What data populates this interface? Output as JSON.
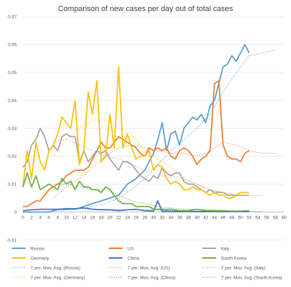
{
  "chart_data": {
    "type": "line",
    "title": "Comparison of new cases per day out of total cases",
    "xlabel": "",
    "ylabel": "",
    "xlim": [
      0,
      60
    ],
    "ylim": [
      -0.01,
      0.07
    ],
    "x_ticks": [
      "0",
      "2",
      "4",
      "6",
      "8",
      "10",
      "12",
      "14",
      "16",
      "18",
      "20",
      "22",
      "24",
      "26",
      "28",
      "30",
      "32",
      "34",
      "36",
      "38",
      "40",
      "42",
      "44",
      "46",
      "48",
      "50",
      "52",
      "54",
      "56",
      "58",
      "60"
    ],
    "y_ticks": [
      "-0,01",
      "0",
      "0,01",
      "0,02",
      "0,03",
      "0,04",
      "0,05",
      "0,06",
      "0,07"
    ],
    "grid": "horizontal",
    "legend_position": "bottom",
    "series": [
      {
        "name": "Russia",
        "color": "#5b9bd5",
        "dashed": false,
        "x": [
          0,
          2,
          4,
          6,
          8,
          10,
          12,
          14,
          16,
          18,
          20,
          22,
          24,
          26,
          28,
          29,
          30,
          31,
          32,
          33,
          34,
          35,
          36,
          37,
          38,
          39,
          40,
          41,
          42,
          43,
          44,
          45,
          46,
          47,
          48,
          49,
          50,
          51,
          52
        ],
        "y": [
          0,
          0,
          0,
          0,
          0.001,
          0.001,
          0.001,
          0.002,
          0.003,
          0.004,
          0.005,
          0.006,
          0.01,
          0.012,
          0.015,
          0.018,
          0.021,
          0.026,
          0.032,
          0.022,
          0.028,
          0.029,
          0.024,
          0.03,
          0.032,
          0.034,
          0.033,
          0.035,
          0.032,
          0.038,
          0.04,
          0.046,
          0.052,
          0.053,
          0.056,
          0.054,
          0.057,
          0.06,
          0.057
        ]
      },
      {
        "name": "US",
        "color": "#ed7d31",
        "dashed": false,
        "x": [
          0,
          1,
          2,
          3,
          4,
          5,
          6,
          7,
          8,
          9,
          10,
          11,
          12,
          13,
          14,
          15,
          16,
          17,
          18,
          19,
          20,
          21,
          22,
          23,
          24,
          25,
          26,
          27,
          28,
          29,
          30,
          31,
          32,
          33,
          34,
          35,
          36,
          37,
          38,
          39,
          40,
          41,
          42,
          43,
          44,
          45,
          46,
          47,
          48,
          49,
          50,
          51,
          52
        ],
        "y": [
          0.002,
          0.002,
          0.003,
          0.004,
          0.004,
          0.006,
          0.008,
          0.009,
          0.01,
          0.011,
          0.013,
          0.014,
          0.015,
          0.015,
          0.015,
          0.016,
          0.019,
          0.022,
          0.025,
          0.023,
          0.023,
          0.025,
          0.027,
          0.026,
          0.025,
          0.024,
          0.023,
          0.021,
          0.02,
          0.023,
          0.022,
          0.023,
          0.022,
          0.023,
          0.02,
          0.019,
          0.022,
          0.023,
          0.022,
          0.02,
          0.017,
          0.019,
          0.02,
          0.022,
          0.046,
          0.047,
          0.024,
          0.02,
          0.019,
          0.019,
          0.018,
          0.021,
          0.022
        ]
      },
      {
        "name": "Italy",
        "color": "#a5a5a5",
        "dashed": false,
        "x": [
          0,
          1,
          2,
          3,
          4,
          5,
          6,
          7,
          8,
          9,
          10,
          11,
          12,
          13,
          14,
          15,
          16,
          17,
          18,
          19,
          20,
          21,
          22,
          23,
          24,
          25,
          26,
          27,
          28,
          29,
          30,
          31,
          32,
          33,
          34,
          35,
          36,
          37,
          38,
          39,
          40,
          41,
          42,
          43,
          44,
          45,
          46,
          47,
          48,
          49,
          50,
          51,
          52
        ],
        "y": [
          0.016,
          0.018,
          0.024,
          0.026,
          0.03,
          0.027,
          0.022,
          0.024,
          0.022,
          0.027,
          0.028,
          0.027,
          0.027,
          0.018,
          0.022,
          0.018,
          0.02,
          0.022,
          0.021,
          0.022,
          0.019,
          0.017,
          0.015,
          0.018,
          0.018,
          0.017,
          0.015,
          0.013,
          0.012,
          0.011,
          0.013,
          0.012,
          0.016,
          0.014,
          0.013,
          0.014,
          0.014,
          0.011,
          0.01,
          0.01,
          0.009,
          0.008,
          0.007,
          0.008,
          0.007,
          0.007,
          0.007,
          0.006,
          0.006,
          0.006,
          0.006,
          0.006,
          0.006
        ]
      },
      {
        "name": "Germany",
        "color": "#ffc000",
        "dashed": false,
        "x": [
          0,
          1,
          2,
          3,
          4,
          5,
          6,
          7,
          8,
          9,
          10,
          11,
          12,
          13,
          14,
          15,
          16,
          17,
          18,
          19,
          20,
          21,
          22,
          23,
          24,
          25,
          26,
          27,
          28,
          29,
          30,
          31,
          32,
          33,
          34,
          35,
          36,
          37,
          38,
          39,
          40,
          41,
          42,
          43,
          44,
          45,
          46,
          47,
          48,
          49,
          50,
          51,
          52
        ],
        "y": [
          0.009,
          0.022,
          0.012,
          0.025,
          0.018,
          0.015,
          0.022,
          0.024,
          0.028,
          0.034,
          0.032,
          0.03,
          0.04,
          0.017,
          0.022,
          0.043,
          0.035,
          0.047,
          0.018,
          0.02,
          0.035,
          0.023,
          0.052,
          0.023,
          0.028,
          0.023,
          0.019,
          0.02,
          0.02,
          0.022,
          0.015,
          0.017,
          0.016,
          0.012,
          0.01,
          0.011,
          0.01,
          0.008,
          0.008,
          0.009,
          0.008,
          0.008,
          0.007,
          0.006,
          0.007,
          0.006,
          0.006,
          0.005,
          0.005,
          0.006,
          0.007,
          0.007,
          0.007
        ]
      },
      {
        "name": "China",
        "color": "#4472c4",
        "dashed": false,
        "x": [
          0,
          2,
          4,
          6,
          8,
          10,
          12,
          14,
          16,
          18,
          20,
          22,
          24,
          26,
          28,
          30,
          31,
          32,
          33,
          34,
          36,
          38,
          40,
          42,
          44,
          46,
          48,
          50,
          52
        ],
        "y": [
          0.0005,
          0.0008,
          0.001,
          0.001,
          0.001,
          0.0012,
          0.0012,
          0.0015,
          0.001,
          0.0008,
          0.0008,
          0.0005,
          0.0008,
          0.001,
          0.0005,
          0.0003,
          0.004,
          0.0002,
          0.0003,
          0.0002,
          0.0002,
          0.0002,
          0.0002,
          0.0002,
          0.0002,
          0.0002,
          0.0002,
          0.0002,
          0.0002
        ]
      },
      {
        "name": "South Korea",
        "color": "#70ad47",
        "dashed": false,
        "x": [
          0,
          1,
          2,
          3,
          4,
          5,
          6,
          7,
          8,
          9,
          10,
          11,
          12,
          13,
          14,
          15,
          16,
          17,
          18,
          19,
          20,
          21,
          22,
          23,
          24,
          25,
          26,
          27,
          28,
          29,
          30,
          31,
          32,
          34,
          36,
          38,
          40,
          42,
          44,
          46,
          48,
          50,
          52
        ],
        "y": [
          0.009,
          0.014,
          0.009,
          0.013,
          0.008,
          0.009,
          0.01,
          0.009,
          0.008,
          0.012,
          0.01,
          0.011,
          0.008,
          0.011,
          0.009,
          0.009,
          0.008,
          0.008,
          0.007,
          0.009,
          0.008,
          0.006,
          0.004,
          0.003,
          0.003,
          0.003,
          0.002,
          0.002,
          0.002,
          0.002,
          0.001,
          0.001,
          0.001,
          0.001,
          0.0005,
          0.0005,
          0.001,
          0.0005,
          0.0005,
          0.0005,
          0.0003,
          0.0003,
          0.0005
        ]
      },
      {
        "name": "7 per. Mov. Avg. (Russia)",
        "color": "#5b9bd5",
        "dashed": true,
        "x": [
          7,
          10,
          13,
          16,
          19,
          22,
          25,
          28,
          31,
          34,
          37,
          40,
          43,
          46,
          49,
          52,
          55,
          58
        ],
        "y": [
          0.0003,
          0.0008,
          0.0012,
          0.002,
          0.003,
          0.005,
          0.008,
          0.012,
          0.017,
          0.022,
          0.026,
          0.03,
          0.035,
          0.043,
          0.05,
          0.056,
          0.057,
          0.058
        ]
      },
      {
        "name": "7 per. Mov. Avg. (US)",
        "color": "#ed7d31",
        "dashed": true,
        "x": [
          7,
          10,
          13,
          16,
          19,
          22,
          25,
          28,
          31,
          34,
          37,
          40,
          43,
          46,
          49,
          52,
          55,
          58
        ],
        "y": [
          0.005,
          0.009,
          0.012,
          0.016,
          0.02,
          0.023,
          0.024,
          0.023,
          0.022,
          0.021,
          0.021,
          0.02,
          0.022,
          0.025,
          0.024,
          0.022,
          0.021,
          0.021
        ]
      },
      {
        "name": "7 per. Mov. Avg. (Italy)",
        "color": "#a5a5a5",
        "dashed": true,
        "x": [
          7,
          10,
          13,
          16,
          19,
          22,
          25,
          28,
          31,
          34,
          37,
          40,
          43,
          46,
          49,
          52,
          55
        ],
        "y": [
          0.025,
          0.026,
          0.024,
          0.022,
          0.02,
          0.019,
          0.017,
          0.015,
          0.013,
          0.013,
          0.012,
          0.01,
          0.008,
          0.007,
          0.006,
          0.006,
          0.006
        ]
      },
      {
        "name": "7 per. Mov. Avg. (Germany)",
        "color": "#ffc000",
        "dashed": true,
        "x": [
          7,
          10,
          13,
          16,
          19,
          22,
          25,
          28,
          31,
          34,
          37,
          40,
          43,
          46,
          49,
          52
        ],
        "y": [
          0.02,
          0.026,
          0.03,
          0.033,
          0.033,
          0.03,
          0.028,
          0.022,
          0.019,
          0.016,
          0.012,
          0.01,
          0.008,
          0.007,
          0.006,
          0.006
        ]
      },
      {
        "name": "7 per. Mov. Avg. (China)",
        "color": "#4472c4",
        "dashed": true,
        "x": [
          7,
          13,
          19,
          25,
          31,
          37,
          43,
          49,
          55
        ],
        "y": [
          0.0008,
          0.0012,
          0.001,
          0.0008,
          0.0008,
          0.0003,
          0.0002,
          0.0002,
          0.0002
        ]
      },
      {
        "name": "7 per. Mov. Avg. (South Korea)",
        "color": "#70ad47",
        "dashed": true,
        "x": [
          7,
          10,
          13,
          16,
          19,
          22,
          25,
          28,
          31,
          34,
          37,
          40,
          43,
          46,
          49,
          52
        ],
        "y": [
          0.01,
          0.01,
          0.009,
          0.008,
          0.008,
          0.006,
          0.004,
          0.003,
          0.002,
          0.0015,
          0.001,
          0.001,
          0.0008,
          0.0006,
          0.0005,
          0.0005
        ]
      }
    ]
  }
}
